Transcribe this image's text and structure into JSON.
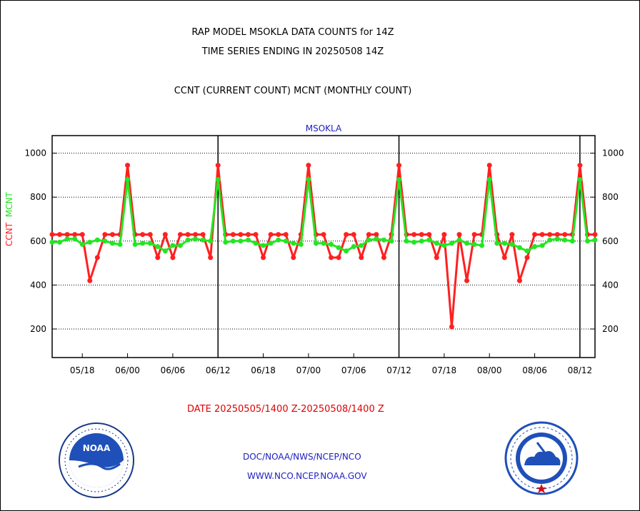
{
  "header": {
    "title1": "RAP MODEL MSOKLA DATA COUNTS for 14Z",
    "title2": "TIME SERIES ENDING IN 20250508 14Z",
    "title3": "CCNT (CURRENT COUNT) MCNT (MONTHLY COUNT)"
  },
  "ylabel": {
    "ccnt": "CCNT",
    "mcnt": "MCNT"
  },
  "footer": {
    "date_range": "DATE 20250505/1400 Z-20250508/1400 Z",
    "link1": "DOC/NOAA/NWS/NCEP/NCO",
    "link2": "WWW.NCO.NCEP.NOAA.GOV"
  },
  "logos": {
    "noaa": "NOAA",
    "nws": "NATIONAL WEATHER SERVICE"
  },
  "colors": {
    "ccnt": "#ff2020",
    "mcnt": "#22e622",
    "axis": "#000000",
    "station": "#2020c0"
  },
  "chart_data": {
    "type": "line",
    "title": "MSOKLA",
    "x_tick_labels": [
      "05/18",
      "06/00",
      "06/06",
      "06/12",
      "06/18",
      "07/00",
      "07/06",
      "07/12",
      "07/18",
      "08/00",
      "08/06",
      "08/12"
    ],
    "x_tick_positions": [
      4,
      10,
      16,
      22,
      28,
      34,
      40,
      46,
      52,
      58,
      64,
      70
    ],
    "x_range": [
      0,
      72
    ],
    "day_boundaries": [
      22,
      46,
      70
    ],
    "yticks": [
      200,
      400,
      600,
      800,
      1000
    ],
    "ylim": [
      70,
      1080
    ],
    "grid": "horizontal dotted",
    "series": [
      {
        "name": "CCNT",
        "color": "#ff2020",
        "values": [
          630,
          630,
          630,
          630,
          630,
          420,
          525,
          630,
          630,
          630,
          945,
          630,
          630,
          630,
          525,
          630,
          525,
          630,
          630,
          630,
          630,
          525,
          945,
          630,
          630,
          630,
          630,
          630,
          525,
          630,
          630,
          630,
          525,
          630,
          945,
          630,
          630,
          525,
          525,
          630,
          630,
          525,
          630,
          630,
          525,
          630,
          945,
          630,
          630,
          630,
          630,
          525,
          630,
          210,
          630,
          420,
          630,
          630,
          945,
          630,
          525,
          630,
          420,
          525,
          630,
          630,
          630,
          630,
          630,
          630,
          945,
          630,
          630
        ]
      },
      {
        "name": "MCNT",
        "color": "#22e622",
        "values": [
          595,
          595,
          610,
          610,
          585,
          595,
          605,
          600,
          590,
          585,
          880,
          585,
          590,
          590,
          575,
          555,
          580,
          580,
          605,
          610,
          605,
          600,
          880,
          595,
          600,
          600,
          605,
          590,
          580,
          590,
          605,
          600,
          590,
          585,
          880,
          590,
          590,
          585,
          570,
          555,
          575,
          580,
          605,
          610,
          605,
          600,
          880,
          600,
          595,
          600,
          605,
          590,
          580,
          590,
          605,
          590,
          585,
          580,
          880,
          590,
          590,
          585,
          570,
          555,
          575,
          580,
          605,
          610,
          605,
          600,
          880,
          600,
          605
        ]
      }
    ]
  }
}
